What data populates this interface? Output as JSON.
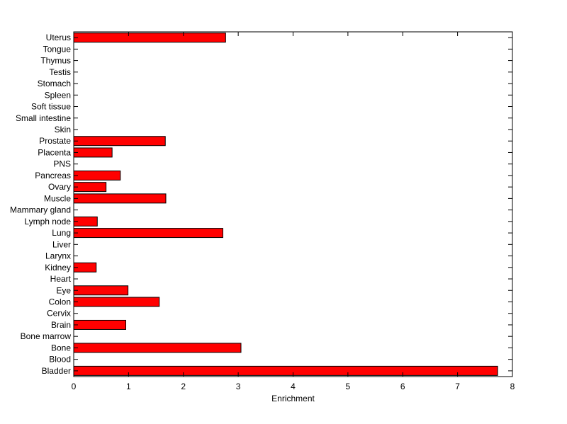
{
  "chart_data": {
    "type": "bar",
    "orientation": "horizontal",
    "xlabel": "Enrichment",
    "ylabel": "",
    "title": "",
    "xlim": [
      0,
      8
    ],
    "xticks": [
      "0",
      "1",
      "2",
      "3",
      "4",
      "5",
      "6",
      "7",
      "8"
    ],
    "grid": false,
    "bar_color": "#ff0000",
    "bar_edge_color": "#000000",
    "categories": [
      "Bladder",
      "Blood",
      "Bone",
      "Bone marrow",
      "Brain",
      "Cervix",
      "Colon",
      "Eye",
      "Heart",
      "Kidney",
      "Larynx",
      "Liver",
      "Lung",
      "Lymph node",
      "Mammary gland",
      "Muscle",
      "Ovary",
      "Pancreas",
      "PNS",
      "Placenta",
      "Prostate",
      "Skin",
      "Small intestine",
      "Soft tissue",
      "Spleen",
      "Stomach",
      "Testis",
      "Thymus",
      "Tongue",
      "Uterus"
    ],
    "values": [
      7.73,
      0,
      3.05,
      0,
      0.95,
      0,
      1.56,
      0.99,
      0,
      0.41,
      0,
      0,
      2.72,
      0.43,
      0,
      1.68,
      0.59,
      0.85,
      0,
      0.7,
      1.67,
      0,
      0,
      0,
      0,
      0,
      0,
      0,
      0,
      2.77
    ]
  }
}
